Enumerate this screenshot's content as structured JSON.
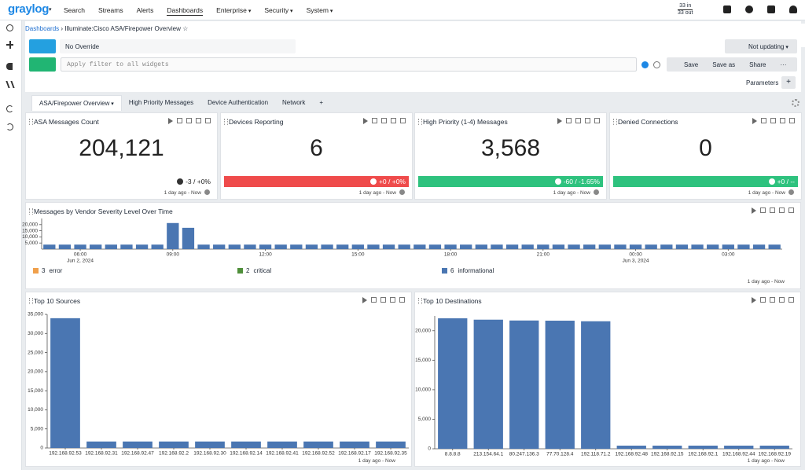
{
  "nav": {
    "logo": "graylog",
    "items": [
      "Search",
      "Streams",
      "Alerts",
      "Dashboards",
      "Enterprise",
      "Security",
      "System"
    ],
    "throughput_in": "33 in",
    "throughput_out": "33 out"
  },
  "breadcrumb": [
    "Dashboards",
    "Illuminate:Cisco ASA/Firepower Overview"
  ],
  "timerange": "No Override",
  "refresh": "Not updating",
  "filter_placeholder": "Apply filter to all widgets",
  "actions": [
    "Save",
    "Save as",
    "Share"
  ],
  "parameters": "Parameters",
  "tabs": [
    "ASA/Firepower Overview",
    "High Priority Messages",
    "Device Authentication",
    "Network"
  ],
  "stat_widgets": [
    {
      "title": "ASA Messages Count",
      "value": "204,121",
      "delta": "-3 / +0%",
      "color": "#ffffff",
      "time": "1 day ago - Now"
    },
    {
      "title": "Devices Reporting",
      "value": "6",
      "delta": "+0 / +0%",
      "color": "#ef4b4b",
      "time": "1 day ago - Now"
    },
    {
      "title": "High Priority (1-4) Messages",
      "value": "3,568",
      "delta": "-60 / -1.65%",
      "color": "#2ec27e",
      "time": "1 day ago - Now"
    },
    {
      "title": "Denied Connections",
      "value": "0",
      "delta": "+0 / --",
      "color": "#2ec27e",
      "time": "1 day ago - Now"
    }
  ],
  "chart_data": [
    {
      "type": "bar",
      "title": "Messages by Vendor Severity Level Over Time",
      "time": "1 day ago - Now",
      "color": "#4a76b2",
      "categories": [
        null,
        null,
        "06:00",
        null,
        null,
        null,
        null,
        null,
        "09:00",
        null,
        null,
        null,
        null,
        null,
        "12:00",
        null,
        null,
        null,
        null,
        null,
        "15:00",
        null,
        null,
        null,
        null,
        null,
        "18:00",
        null,
        null,
        null,
        null,
        null,
        "21:00",
        null,
        null,
        null,
        null,
        null,
        "00:00",
        null,
        null,
        null,
        null,
        null,
        "03:00",
        null,
        null,
        null
      ],
      "date_labels": [
        {
          "at": "06:00",
          "label": "Jun 2, 2024"
        },
        {
          "at": "00:00",
          "label": "Jun 3, 2024"
        }
      ],
      "values": [
        3700,
        3700,
        3700,
        3700,
        3700,
        3700,
        3700,
        3700,
        21300,
        17400,
        3700,
        3700,
        3700,
        3700,
        3700,
        3700,
        3700,
        3700,
        3700,
        3700,
        3700,
        3700,
        3700,
        3700,
        3700,
        3700,
        3700,
        3700,
        3700,
        3700,
        3700,
        3700,
        3700,
        3700,
        3700,
        3700,
        3700,
        3700,
        3700,
        3700,
        3700,
        3700,
        3700,
        3700,
        3700,
        3700,
        3700,
        3700
      ],
      "ylim": [
        0,
        25000
      ],
      "yticks": [
        {
          "value": 5000,
          "label": "5,000"
        },
        {
          "value": 10000,
          "label": "10,000"
        },
        {
          "value": 15000,
          "label": "15,000"
        },
        {
          "value": 20000,
          "label": "20,000"
        }
      ],
      "legend": [
        {
          "code": "3",
          "name": "error",
          "color": "#f0a04b"
        },
        {
          "code": "2",
          "name": "critical",
          "color": "#4f8f3a"
        },
        {
          "code": "6",
          "name": "informational",
          "color": "#4a76b2"
        }
      ]
    },
    {
      "type": "bar",
      "title": "Top 10 Sources",
      "time": "1 day ago - Now",
      "color": "#4a76b2",
      "categories": [
        "192.168.92.53",
        "192.168.92.31",
        "192.168.92.47",
        "192.168.92.2",
        "192.168.92.30",
        "192.168.92.14",
        "192.168.92.41",
        "192.168.92.52",
        "192.168.92.17",
        "192.168.92.35"
      ],
      "values": [
        34000,
        1700,
        1700,
        1700,
        1700,
        1700,
        1700,
        1700,
        1700,
        1700
      ],
      "ylim": [
        0,
        35000
      ],
      "yticks": [
        0,
        {
          "value": 5000,
          "label": "5,000"
        },
        {
          "value": 10000,
          "label": "10,000"
        },
        {
          "value": 15000,
          "label": "15,000"
        },
        {
          "value": 20000,
          "label": "20,000"
        },
        {
          "value": 25000,
          "label": "25,000"
        },
        {
          "value": 30000,
          "label": "30,000"
        },
        {
          "value": 35000,
          "label": "35,000"
        }
      ]
    },
    {
      "type": "bar",
      "title": "Top 10 Destinations",
      "time": "1 day ago - Now",
      "color": "#4a76b2",
      "categories": [
        "8.8.8.8",
        "213.154.64.1",
        "80.247.136.3",
        "77.70.128.4",
        "192.118.71.2",
        "192.168.92.48",
        "192.168.92.15",
        "192.168.92.1",
        "192.168.92.44",
        "192.168.92.19"
      ],
      "values": [
        22100,
        21870,
        21730,
        21700,
        21600,
        530,
        530,
        530,
        530,
        530
      ],
      "ylim": [
        0,
        22500
      ],
      "yticks": [
        0,
        {
          "value": 5000,
          "label": "5,000"
        },
        {
          "value": 10000,
          "label": "10,000"
        },
        {
          "value": 15000,
          "label": "15,000"
        },
        {
          "value": 20000,
          "label": "20,000"
        }
      ]
    }
  ]
}
